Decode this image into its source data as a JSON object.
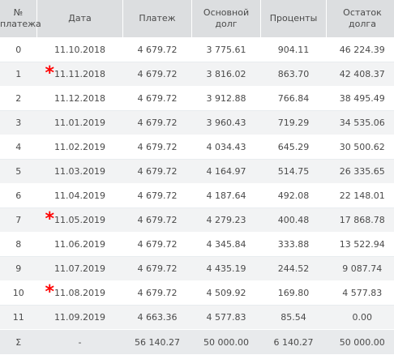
{
  "headers": [
    "№\nплатежа",
    "Дата",
    "Платеж",
    "Основной\nдолг",
    "Проценты",
    "Остаток\nдолга"
  ],
  "rows": [
    {
      "n": "0",
      "date": "11.10.2018",
      "payment": "4 679.72",
      "principal": "3 775.61",
      "interest": "904.11",
      "balance": "46 224.39",
      "mark": ""
    },
    {
      "n": "1",
      "date": "11.11.2018",
      "payment": "4 679.72",
      "principal": "3 816.02",
      "interest": "863.70",
      "balance": "42 408.37",
      "mark": "*"
    },
    {
      "n": "2",
      "date": "11.12.2018",
      "payment": "4 679.72",
      "principal": "3 912.88",
      "interest": "766.84",
      "balance": "38 495.49",
      "mark": ""
    },
    {
      "n": "3",
      "date": "11.01.2019",
      "payment": "4 679.72",
      "principal": "3 960.43",
      "interest": "719.29",
      "balance": "34 535.06",
      "mark": ""
    },
    {
      "n": "4",
      "date": "11.02.2019",
      "payment": "4 679.72",
      "principal": "4 034.43",
      "interest": "645.29",
      "balance": "30 500.62",
      "mark": ""
    },
    {
      "n": "5",
      "date": "11.03.2019",
      "payment": "4 679.72",
      "principal": "4 164.97",
      "interest": "514.75",
      "balance": "26 335.65",
      "mark": ""
    },
    {
      "n": "6",
      "date": "11.04.2019",
      "payment": "4 679.72",
      "principal": "4 187.64",
      "interest": "492.08",
      "balance": "22 148.01",
      "mark": ""
    },
    {
      "n": "7",
      "date": "11.05.2019",
      "payment": "4 679.72",
      "principal": "4 279.23",
      "interest": "400.48",
      "balance": "17 868.78",
      "mark": "*"
    },
    {
      "n": "8",
      "date": "11.06.2019",
      "payment": "4 679.72",
      "principal": "4 345.84",
      "interest": "333.88",
      "balance": "13 522.94",
      "mark": ""
    },
    {
      "n": "9",
      "date": "11.07.2019",
      "payment": "4 679.72",
      "principal": "4 435.19",
      "interest": "244.52",
      "balance": "9 087.74",
      "mark": ""
    },
    {
      "n": "10",
      "date": "11.08.2019",
      "payment": "4 679.72",
      "principal": "4 509.92",
      "interest": "169.80",
      "balance": "4 577.83",
      "mark": "*"
    },
    {
      "n": "11",
      "date": "11.09.2019",
      "payment": "4 663.36",
      "principal": "4 577.83",
      "interest": "85.54",
      "balance": "0.00",
      "mark": ""
    }
  ],
  "total": {
    "n": "Σ",
    "date": "-",
    "payment": "56 140.27",
    "principal": "50 000.00",
    "interest": "6 140.27",
    "balance": "50 000.00"
  },
  "colors": {
    "header_bg": "#dcdee0",
    "stripe_bg": "#f2f3f4",
    "mark": "#ff0000",
    "text": "#4a4a4a"
  }
}
